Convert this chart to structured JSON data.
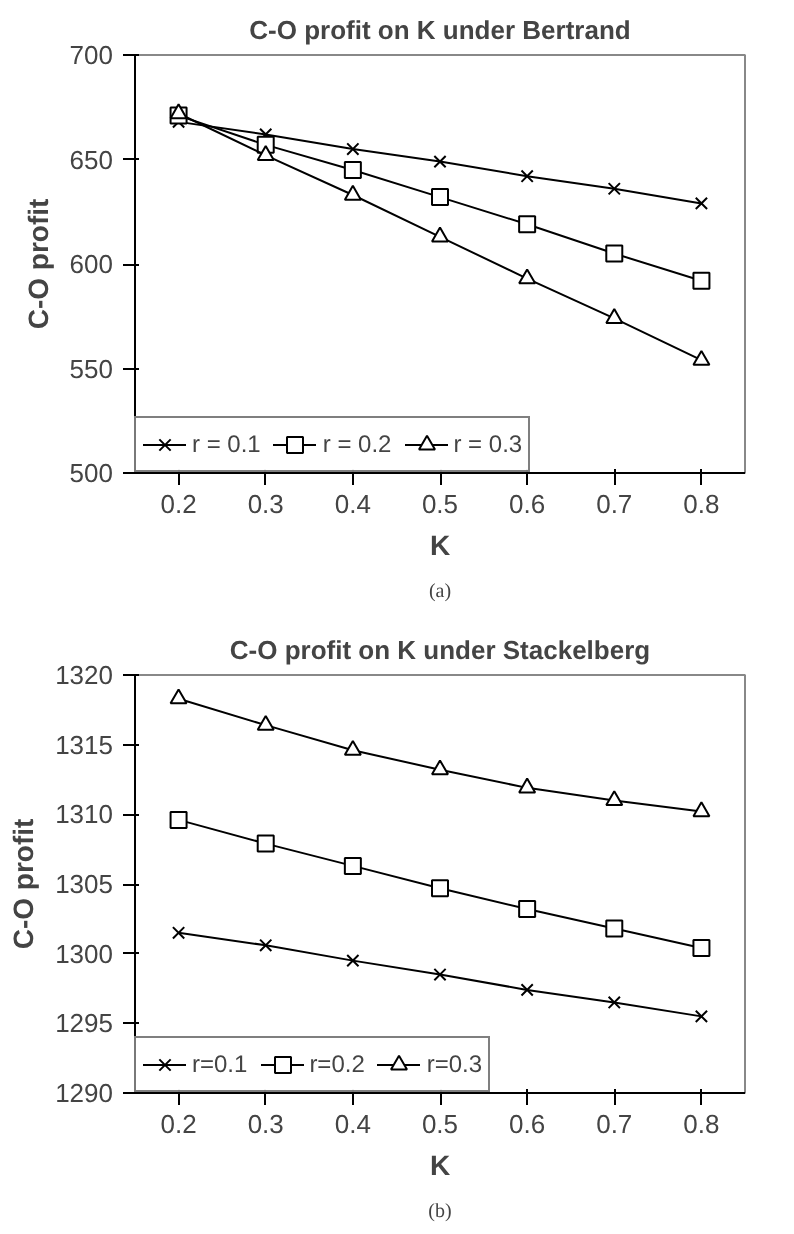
{
  "chart_data": [
    {
      "type": "line",
      "title": "C-O profit on K under Bertrand",
      "xlabel": "K",
      "ylabel": "C-O profit",
      "categories": [
        "0.2",
        "0.3",
        "0.4",
        "0.5",
        "0.6",
        "0.7",
        "0.8"
      ],
      "ylim": [
        500,
        700
      ],
      "yticks": [
        500,
        550,
        600,
        650,
        700
      ],
      "grid": false,
      "legend": "bottom",
      "annotations": [
        "(a)"
      ],
      "series": [
        {
          "name": "r = 0.1",
          "color": "#000000",
          "marker": "cross",
          "values": [
            668,
            662,
            655,
            649,
            642,
            636,
            629
          ]
        },
        {
          "name": "r = 0.2",
          "color": "#000000",
          "marker": "square",
          "values": [
            671,
            657,
            645,
            632,
            619,
            605,
            592
          ]
        },
        {
          "name": "r = 0.3",
          "color": "#000000",
          "marker": "triangle",
          "values": [
            672,
            652,
            633,
            613,
            593,
            574,
            554
          ]
        }
      ]
    },
    {
      "type": "line",
      "title": "C-O profit on K under Stackelberg",
      "xlabel": "K",
      "ylabel": "C-O profit",
      "categories": [
        "0.2",
        "0.3",
        "0.4",
        "0.5",
        "0.6",
        "0.7",
        "0.8"
      ],
      "ylim": [
        1290,
        1320
      ],
      "yticks": [
        1290,
        1295,
        1300,
        1305,
        1310,
        1315,
        1320
      ],
      "grid": false,
      "legend": "bottom",
      "annotations": [
        "(b)"
      ],
      "series": [
        {
          "name": "r=0.1",
          "color": "#000000",
          "marker": "cross",
          "values": [
            1301.5,
            1300.6,
            1299.5,
            1298.5,
            1297.4,
            1296.5,
            1295.5
          ]
        },
        {
          "name": "r=0.2",
          "color": "#000000",
          "marker": "square",
          "values": [
            1309.6,
            1307.9,
            1306.3,
            1304.7,
            1303.2,
            1301.8,
            1300.4
          ]
        },
        {
          "name": "r=0.3",
          "color": "#000000",
          "marker": "triangle",
          "values": [
            1318.3,
            1316.4,
            1314.6,
            1313.2,
            1311.9,
            1311,
            1310.2
          ]
        }
      ]
    }
  ]
}
